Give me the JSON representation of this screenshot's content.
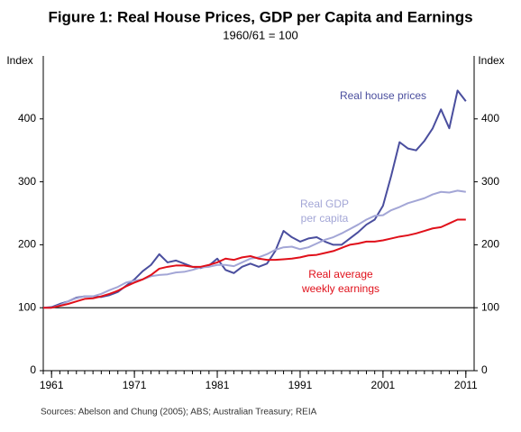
{
  "chart_data": {
    "type": "line",
    "title": "Figure 1: Real House Prices, GDP per Capita and Earnings",
    "subtitle": "1960/61 = 100",
    "y_label": "Index",
    "y2_label": "Index",
    "source": "Sources:  Abelson and Chung (2005); ABS; Australian Treasury; REIA",
    "x": [
      1960,
      1961,
      1962,
      1963,
      1964,
      1965,
      1966,
      1967,
      1968,
      1969,
      1970,
      1971,
      1972,
      1973,
      1974,
      1975,
      1976,
      1977,
      1978,
      1979,
      1980,
      1981,
      1982,
      1983,
      1984,
      1985,
      1986,
      1987,
      1988,
      1989,
      1990,
      1991,
      1992,
      1993,
      1994,
      1995,
      1996,
      1997,
      1998,
      1999,
      2000,
      2001,
      2002,
      2003,
      2004,
      2005,
      2006,
      2007,
      2008,
      2009,
      2010,
      2011
    ],
    "xlim": [
      1960,
      2012
    ],
    "xticks": [
      1961,
      1971,
      1981,
      1991,
      2001,
      2011
    ],
    "ylim": [
      0,
      500
    ],
    "yticks": [
      0,
      100,
      200,
      300,
      400
    ],
    "y2lim": [
      0,
      500
    ],
    "y2ticks": [
      0,
      100,
      200,
      300,
      400
    ],
    "reference_line": 100,
    "series": [
      {
        "label": [
          "Real house prices"
        ],
        "color": "#4a4e9e",
        "values": [
          100,
          101,
          106,
          110,
          116,
          118,
          118,
          117,
          120,
          125,
          135,
          145,
          158,
          168,
          185,
          172,
          175,
          170,
          165,
          163,
          167,
          178,
          160,
          155,
          165,
          170,
          165,
          170,
          190,
          222,
          212,
          205,
          210,
          212,
          205,
          200,
          200,
          210,
          220,
          232,
          240,
          262,
          310,
          363,
          353,
          350,
          365,
          385,
          415,
          385,
          445,
          428
        ]
      },
      {
        "label": [
          "Real GDP",
          "per capita"
        ],
        "color": "#a3a6d6",
        "values": [
          100,
          100,
          104,
          110,
          115,
          118,
          118,
          122,
          128,
          133,
          140,
          143,
          145,
          150,
          152,
          153,
          156,
          157,
          160,
          164,
          165,
          168,
          168,
          166,
          172,
          178,
          180,
          185,
          192,
          196,
          197,
          193,
          196,
          202,
          208,
          212,
          218,
          225,
          232,
          240,
          246,
          247,
          255,
          260,
          266,
          270,
          274,
          280,
          284,
          283,
          286,
          284
        ]
      },
      {
        "label": [
          "Real average",
          "weekly earnings"
        ],
        "color": "#e0101a",
        "values": [
          100,
          100,
          103,
          106,
          110,
          114,
          115,
          118,
          122,
          127,
          134,
          140,
          145,
          152,
          162,
          165,
          167,
          167,
          165,
          165,
          168,
          172,
          178,
          176,
          180,
          182,
          178,
          176,
          176,
          177,
          178,
          180,
          183,
          184,
          187,
          190,
          195,
          200,
          202,
          205,
          205,
          207,
          210,
          213,
          215,
          218,
          222,
          226,
          228,
          234,
          240,
          240
        ]
      }
    ]
  }
}
